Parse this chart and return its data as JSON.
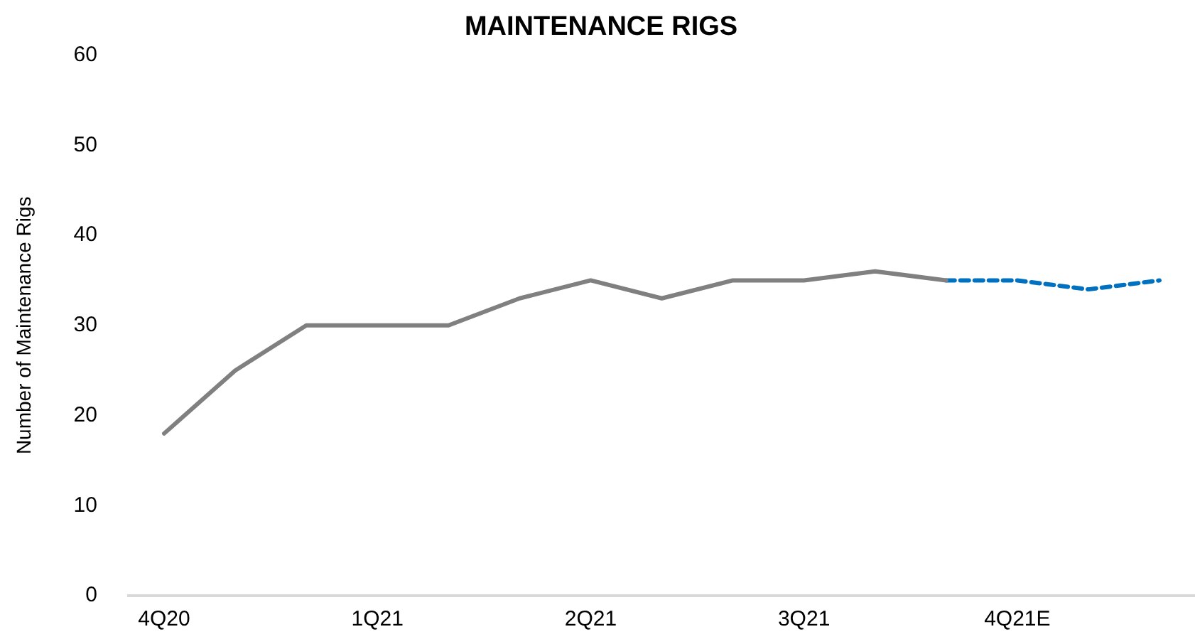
{
  "chart_data": {
    "type": "line",
    "title": "MAINTENANCE RIGS",
    "ylabel": "Number of Maintenance Rigs",
    "categories": [
      "4Q20",
      null,
      null,
      "1Q21",
      null,
      null,
      "2Q21",
      null,
      null,
      "3Q21",
      null,
      null,
      "4Q21E",
      null,
      null
    ],
    "series": [
      {
        "color": "#808080",
        "line_style": "solid",
        "values": [
          18,
          25,
          30,
          30,
          30,
          33,
          35,
          33,
          35,
          35,
          36,
          35,
          null,
          null,
          null
        ]
      },
      {
        "color": "#0070c0",
        "line_style": "dashed",
        "values": [
          null,
          null,
          null,
          null,
          null,
          null,
          null,
          null,
          null,
          null,
          null,
          35,
          35,
          34,
          35
        ]
      }
    ],
    "ylim": [
      0,
      60
    ],
    "yticks": [
      0,
      10,
      20,
      30,
      40,
      50,
      60
    ],
    "grid": false,
    "legend": false,
    "marker": "none"
  }
}
